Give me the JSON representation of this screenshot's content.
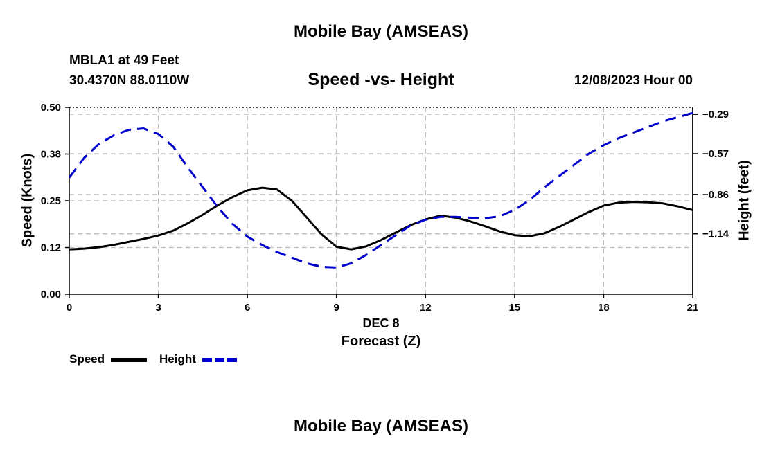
{
  "header": {
    "title": "Mobile Bay (AMSEAS)",
    "station": "MBLA1 at 49 Feet",
    "coords": "30.4370N  88.0110W",
    "subtitle": "Speed -vs- Height",
    "datetime": "12/08/2023 Hour 00"
  },
  "footer": {
    "title": "Mobile Bay (AMSEAS)"
  },
  "chart_data": {
    "type": "line",
    "title": "Speed -vs- Height",
    "xlabel": "Forecast (Z)",
    "xlabel_date": "DEC 8",
    "ylabel": "Speed (Knots)",
    "y2label": "Height (feet)",
    "xlim": [
      0,
      21
    ],
    "ylim": [
      0,
      0.5
    ],
    "y2lim": [
      -1.57,
      -0.24
    ],
    "x_ticks": [
      0,
      3,
      6,
      9,
      12,
      15,
      18,
      21
    ],
    "x_tick_labels": [
      "0",
      "3",
      "6",
      "9",
      "12",
      "15",
      "18",
      "21"
    ],
    "y_ticks": [
      0.0,
      0.125,
      0.25,
      0.375,
      0.5
    ],
    "y_tick_labels": [
      "0.00",
      "0.12",
      "0.25",
      "0.38",
      "0.50"
    ],
    "y2_ticks": [
      -0.29,
      -0.57,
      -0.86,
      -1.14
    ],
    "y2_tick_labels": [
      "−0.29",
      "−0.57",
      "−0.86",
      "−1.14"
    ],
    "grid": true,
    "legend": [
      "Speed",
      "Height"
    ],
    "series": [
      {
        "name": "Speed",
        "axis": "left",
        "color": "#000000",
        "style": "solid",
        "x": [
          0,
          0.5,
          1,
          1.5,
          2,
          2.5,
          3,
          3.5,
          4,
          4.5,
          5,
          5.5,
          6,
          6.5,
          7,
          7.5,
          8,
          8.5,
          9,
          9.5,
          10,
          10.5,
          11,
          11.5,
          12,
          12.5,
          13,
          13.5,
          14,
          14.5,
          15,
          15.5,
          16,
          16.5,
          17,
          17.5,
          18,
          18.5,
          19,
          19.5,
          20,
          20.5,
          21
        ],
        "values": [
          0.12,
          0.122,
          0.126,
          0.132,
          0.14,
          0.148,
          0.157,
          0.17,
          0.19,
          0.213,
          0.238,
          0.26,
          0.278,
          0.285,
          0.28,
          0.25,
          0.205,
          0.16,
          0.127,
          0.12,
          0.128,
          0.145,
          0.165,
          0.185,
          0.2,
          0.21,
          0.205,
          0.195,
          0.182,
          0.168,
          0.158,
          0.155,
          0.163,
          0.18,
          0.2,
          0.22,
          0.237,
          0.245,
          0.247,
          0.246,
          0.243,
          0.235,
          0.225
        ]
      },
      {
        "name": "Height",
        "axis": "right",
        "color": "#0000cc",
        "style": "dashed",
        "x": [
          0,
          0.5,
          1,
          1.5,
          2,
          2.5,
          3,
          3.5,
          4,
          4.5,
          5,
          5.5,
          6,
          6.5,
          7,
          7.5,
          8,
          8.5,
          9,
          9.5,
          10,
          10.5,
          11,
          11.5,
          12,
          12.5,
          13,
          13.5,
          14,
          14.5,
          15,
          15.5,
          16,
          16.5,
          17,
          17.5,
          18,
          18.5,
          19,
          19.5,
          20,
          20.5,
          21
        ],
        "values": [
          -0.74,
          -0.6,
          -0.5,
          -0.44,
          -0.4,
          -0.39,
          -0.43,
          -0.52,
          -0.67,
          -0.81,
          -0.95,
          -1.07,
          -1.16,
          -1.22,
          -1.27,
          -1.31,
          -1.35,
          -1.375,
          -1.38,
          -1.35,
          -1.29,
          -1.22,
          -1.15,
          -1.08,
          -1.04,
          -1.02,
          -1.02,
          -1.025,
          -1.03,
          -1.015,
          -0.97,
          -0.9,
          -0.81,
          -0.73,
          -0.65,
          -0.57,
          -0.51,
          -0.46,
          -0.42,
          -0.38,
          -0.34,
          -0.31,
          -0.28
        ]
      }
    ]
  }
}
